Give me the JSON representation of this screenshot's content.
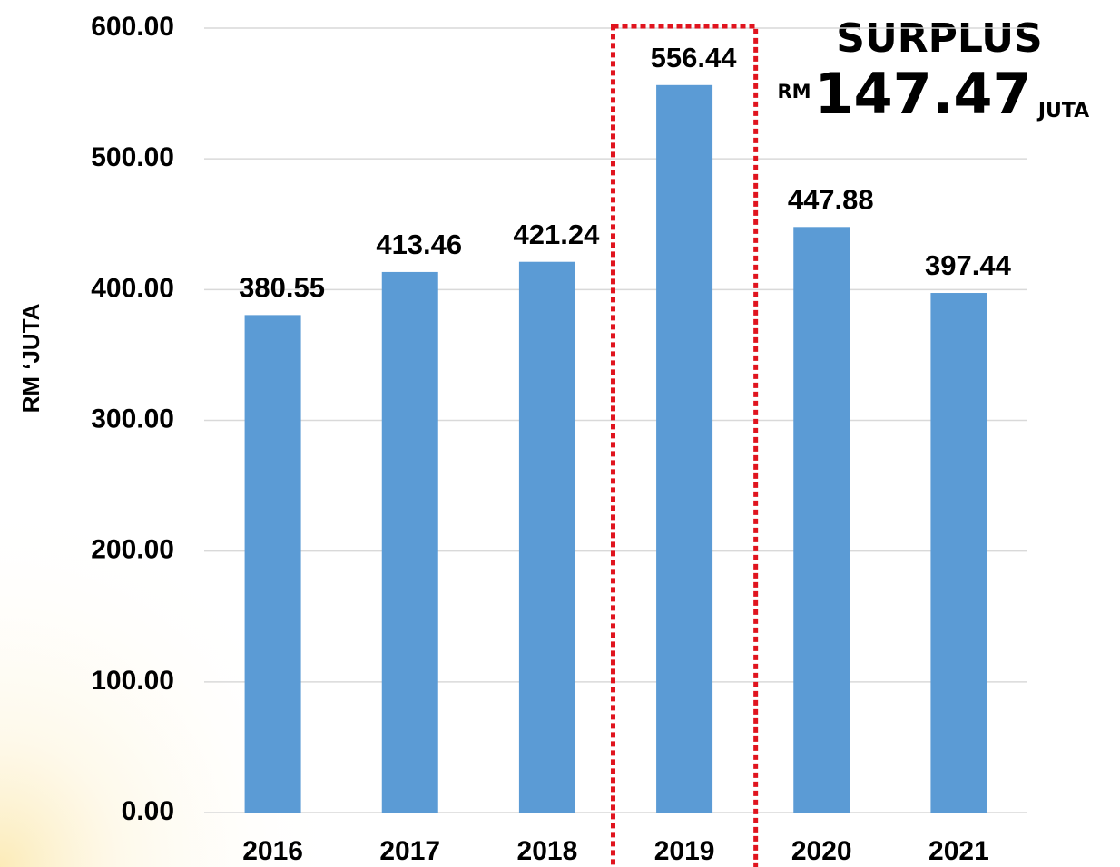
{
  "chart_data": {
    "type": "bar",
    "y_axis_label": "RM ‘JUTA",
    "categories": [
      "2016",
      "2017",
      "2018",
      "2019",
      "2020",
      "2021"
    ],
    "values": [
      380.55,
      413.46,
      421.24,
      556.44,
      447.88,
      397.44
    ],
    "color": "#5b9bd5",
    "ylim": [
      0,
      600
    ],
    "yticks": [
      {
        "value": 0,
        "label": "0.00"
      },
      {
        "value": 100,
        "label": "100.00"
      },
      {
        "value": 200,
        "label": "200.00"
      },
      {
        "value": 300,
        "label": "300.00"
      },
      {
        "value": 400,
        "label": "400.00"
      },
      {
        "value": 500,
        "label": "500.00"
      },
      {
        "value": 600,
        "label": "600.00"
      }
    ],
    "grid": true,
    "highlight": {
      "index": 3,
      "color": "#e0141e",
      "style": "dotted"
    },
    "annotation": {
      "title": "SURPLUS",
      "prefix": "RM",
      "value": 147.47,
      "unit": "JUTA",
      "color": "#c8101a"
    }
  }
}
